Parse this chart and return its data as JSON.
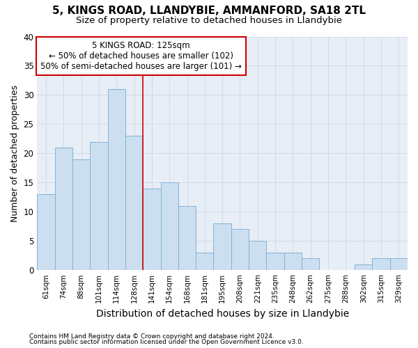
{
  "title1": "5, KINGS ROAD, LLANDYBIE, AMMANFORD, SA18 2TL",
  "title2": "Size of property relative to detached houses in Llandybie",
  "xlabel": "Distribution of detached houses by size in Llandybie",
  "ylabel": "Number of detached properties",
  "categories": [
    "61sqm",
    "74sqm",
    "88sqm",
    "101sqm",
    "114sqm",
    "128sqm",
    "141sqm",
    "154sqm",
    "168sqm",
    "181sqm",
    "195sqm",
    "208sqm",
    "221sqm",
    "235sqm",
    "248sqm",
    "262sqm",
    "275sqm",
    "288sqm",
    "302sqm",
    "315sqm",
    "329sqm"
  ],
  "values": [
    13,
    21,
    19,
    22,
    31,
    23,
    14,
    15,
    11,
    3,
    8,
    7,
    5,
    3,
    3,
    2,
    0,
    0,
    1,
    2,
    2
  ],
  "bar_color": "#ccdff0",
  "bar_edge_color": "#7fb3d9",
  "grid_color": "#d0dae8",
  "red_line_x": 5.5,
  "annotation_text_line1": "5 KINGS ROAD: 125sqm",
  "annotation_text_line2": "← 50% of detached houses are smaller (102)",
  "annotation_text_line3": "50% of semi-detached houses are larger (101) →",
  "annotation_box_color": "#ffffff",
  "annotation_box_edge": "#cc0000",
  "ylim": [
    0,
    40
  ],
  "yticks": [
    0,
    5,
    10,
    15,
    20,
    25,
    30,
    35,
    40
  ],
  "footnote1": "Contains HM Land Registry data © Crown copyright and database right 2024.",
  "footnote2": "Contains public sector information licensed under the Open Government Licence v3.0.",
  "background_color": "#e8eef6",
  "title1_fontsize": 11,
  "title2_fontsize": 9.5,
  "ylabel_fontsize": 9,
  "xlabel_fontsize": 10
}
